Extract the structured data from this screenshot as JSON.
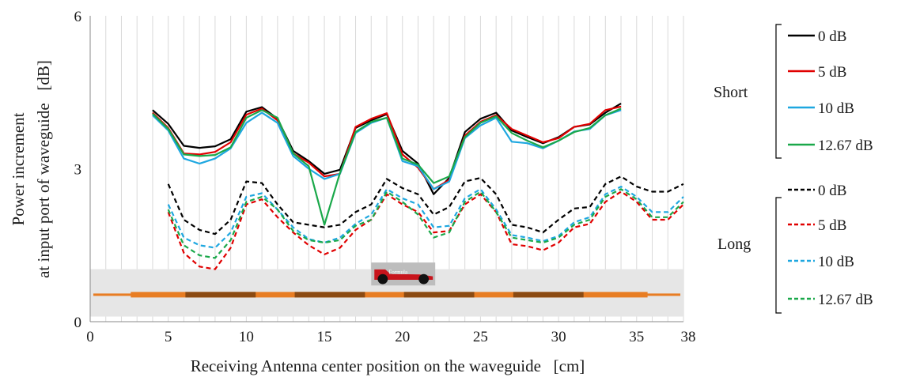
{
  "chart_data": {
    "type": "line",
    "xlabel": "Receiving Antenna center position on the waveguide   [cm]",
    "ylabel": "Power increment",
    "ylabel2": "at input port of waveguide   [dB]",
    "xlim": [
      0,
      38
    ],
    "ylim": [
      0,
      6
    ],
    "xticks": [
      "0",
      "5",
      "10",
      "15",
      "20",
      "25",
      "30",
      "35",
      "38"
    ],
    "yticks": [
      "0",
      "3",
      "6"
    ],
    "grid": "vertical",
    "legend_position": "right",
    "groups": [
      {
        "label": "Short",
        "series": [
          0,
          1,
          2,
          3
        ]
      },
      {
        "label": "Long",
        "series": [
          4,
          5,
          6,
          7
        ]
      }
    ],
    "series": [
      {
        "name": "0 dB",
        "color": "#000000",
        "dash": false,
        "x": [
          4,
          5,
          6,
          7,
          8,
          9,
          10,
          11,
          12,
          13,
          14,
          15,
          16,
          17,
          18,
          19,
          20,
          21,
          22,
          23,
          24,
          25,
          26,
          27,
          28,
          29,
          30,
          31,
          32,
          33,
          34
        ],
        "values": [
          4.15,
          3.88,
          3.45,
          3.41,
          3.44,
          3.58,
          4.12,
          4.21,
          3.98,
          3.35,
          3.15,
          2.9,
          2.98,
          3.8,
          3.95,
          4.07,
          3.35,
          3.1,
          2.5,
          2.82,
          3.72,
          3.98,
          4.1,
          3.75,
          3.62,
          3.5,
          3.62,
          3.82,
          3.87,
          4.1,
          4.28
        ]
      },
      {
        "name": "5 dB",
        "color": "#e00000",
        "dash": false,
        "x": [
          4,
          5,
          6,
          7,
          8,
          9,
          10,
          11,
          12,
          13,
          14,
          15,
          16,
          17,
          18,
          19,
          20,
          21,
          22,
          23,
          24,
          25,
          26,
          27,
          28,
          29,
          30,
          31,
          32,
          33,
          34
        ],
        "values": [
          4.1,
          3.8,
          3.3,
          3.28,
          3.33,
          3.52,
          4.06,
          4.18,
          3.95,
          3.3,
          3.12,
          2.85,
          2.9,
          3.82,
          3.98,
          4.09,
          3.28,
          3.02,
          2.6,
          2.78,
          3.65,
          3.92,
          4.05,
          3.78,
          3.65,
          3.52,
          3.6,
          3.82,
          3.88,
          4.15,
          4.22
        ]
      },
      {
        "name": "10 dB",
        "color": "#1ea7e0",
        "dash": false,
        "x": [
          4,
          5,
          6,
          7,
          8,
          9,
          10,
          11,
          12,
          13,
          14,
          15,
          16,
          17,
          18,
          19,
          20,
          21,
          22,
          23,
          24,
          25,
          26,
          27,
          28,
          29,
          30,
          31,
          32,
          33,
          34
        ],
        "values": [
          4.05,
          3.75,
          3.2,
          3.1,
          3.2,
          3.4,
          3.9,
          4.1,
          3.9,
          3.25,
          3.0,
          2.8,
          2.9,
          3.7,
          3.9,
          4.0,
          3.15,
          3.05,
          2.6,
          2.75,
          3.6,
          3.85,
          4.0,
          3.53,
          3.5,
          3.4,
          3.55,
          3.73,
          3.78,
          4.05,
          4.15
        ]
      },
      {
        "name": "12.67 dB",
        "color": "#1aa84a",
        "dash": false,
        "x": [
          4,
          5,
          6,
          7,
          8,
          9,
          10,
          11,
          12,
          13,
          14,
          15,
          16,
          17,
          18,
          19,
          20,
          21,
          22,
          23,
          24,
          25,
          26,
          27,
          28,
          29,
          30,
          31,
          32,
          33,
          34
        ],
        "values": [
          4.08,
          3.78,
          3.28,
          3.25,
          3.27,
          3.42,
          4.0,
          4.15,
          4.0,
          3.3,
          3.05,
          1.9,
          2.92,
          3.72,
          3.92,
          4.0,
          3.2,
          3.08,
          2.72,
          2.85,
          3.62,
          3.9,
          4.03,
          3.7,
          3.55,
          3.42,
          3.55,
          3.72,
          3.8,
          4.05,
          4.18
        ]
      },
      {
        "name": "0 dB",
        "color": "#000000",
        "dash": true,
        "x": [
          5,
          6,
          7,
          8,
          9,
          10,
          11,
          12,
          13,
          14,
          15,
          16,
          17,
          18,
          19,
          20,
          21,
          22,
          23,
          24,
          25,
          26,
          27,
          28,
          29,
          30,
          31,
          32,
          33,
          34,
          35,
          36,
          37,
          38
        ],
        "values": [
          2.7,
          2.0,
          1.8,
          1.72,
          2.0,
          2.75,
          2.72,
          2.3,
          1.95,
          1.9,
          1.85,
          1.9,
          2.15,
          2.3,
          2.8,
          2.62,
          2.5,
          2.1,
          2.25,
          2.75,
          2.82,
          2.5,
          1.9,
          1.85,
          1.75,
          2.0,
          2.22,
          2.25,
          2.7,
          2.85,
          2.65,
          2.55,
          2.55,
          2.7
        ]
      },
      {
        "name": "5 dB",
        "color": "#e00000",
        "dash": true,
        "x": [
          5,
          6,
          7,
          8,
          9,
          10,
          11,
          12,
          13,
          14,
          15,
          16,
          17,
          18,
          19,
          20,
          21,
          22,
          23,
          24,
          25,
          26,
          27,
          28,
          29,
          30,
          31,
          32,
          33,
          34,
          35,
          36,
          37,
          38
        ],
        "values": [
          2.15,
          1.35,
          1.08,
          1.03,
          1.45,
          2.3,
          2.4,
          2.05,
          1.75,
          1.5,
          1.32,
          1.45,
          1.8,
          2.0,
          2.5,
          2.3,
          2.15,
          1.75,
          1.78,
          2.3,
          2.5,
          2.15,
          1.52,
          1.48,
          1.4,
          1.55,
          1.85,
          1.92,
          2.35,
          2.55,
          2.35,
          2.0,
          2.0,
          2.3
        ]
      },
      {
        "name": "10 dB",
        "color": "#1ea7e0",
        "dash": true,
        "x": [
          5,
          6,
          7,
          8,
          9,
          10,
          11,
          12,
          13,
          14,
          15,
          16,
          17,
          18,
          19,
          20,
          21,
          22,
          23,
          24,
          25,
          26,
          27,
          28,
          29,
          30,
          31,
          32,
          33,
          34,
          35,
          36,
          37,
          38
        ],
        "values": [
          2.3,
          1.65,
          1.5,
          1.45,
          1.75,
          2.45,
          2.52,
          2.2,
          1.85,
          1.62,
          1.55,
          1.65,
          1.92,
          2.1,
          2.6,
          2.42,
          2.3,
          1.85,
          1.88,
          2.42,
          2.6,
          2.2,
          1.7,
          1.65,
          1.58,
          1.68,
          1.95,
          2.05,
          2.5,
          2.65,
          2.45,
          2.15,
          2.15,
          2.45
        ]
      },
      {
        "name": "12.67 dB",
        "color": "#1aa84a",
        "dash": true,
        "x": [
          5,
          6,
          7,
          8,
          9,
          10,
          11,
          12,
          13,
          14,
          15,
          16,
          17,
          18,
          19,
          20,
          21,
          22,
          23,
          24,
          25,
          26,
          27,
          28,
          29,
          30,
          31,
          32,
          33,
          34,
          35,
          36,
          37,
          38
        ],
        "values": [
          2.2,
          1.5,
          1.3,
          1.25,
          1.6,
          2.35,
          2.45,
          2.2,
          1.78,
          1.6,
          1.55,
          1.6,
          1.88,
          2.0,
          2.55,
          2.35,
          2.1,
          1.65,
          1.75,
          2.35,
          2.55,
          2.15,
          1.65,
          1.6,
          1.55,
          1.65,
          1.9,
          2.0,
          2.45,
          2.6,
          2.4,
          2.05,
          2.05,
          2.35
        ]
      }
    ],
    "inset": {
      "waveguide_band": [
        0.1,
        1.03
      ],
      "waveguide_line_y": 0.53,
      "waveguide_line_x": [
        0.2,
        37.8
      ],
      "thick_x": [
        2.6,
        35.7
      ],
      "dark_segments": [
        [
          6.1,
          10.6
        ],
        [
          13.1,
          17.6
        ],
        [
          20.1,
          24.6
        ],
        [
          27.1,
          31.6
        ]
      ],
      "car_icon": "race-car-icon",
      "car_label": "Formula",
      "car_x": [
        18.0,
        22.1
      ],
      "car_y": [
        0.71,
        1.16
      ]
    }
  }
}
